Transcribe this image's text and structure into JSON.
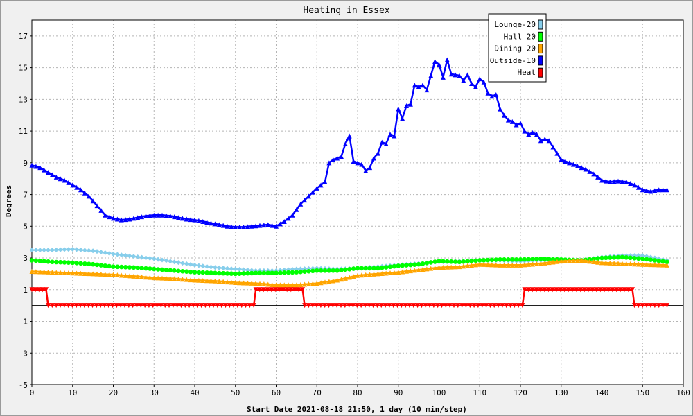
{
  "chart_data": {
    "type": "line",
    "title": "Heating in Essex",
    "xlabel": "Start Date 2021-08-18 21:50, 1 day (10 min/step)",
    "ylabel": "Degrees",
    "xlim": [
      0,
      160
    ],
    "ylim": [
      -5,
      18
    ],
    "x_ticks": [
      0,
      10,
      20,
      30,
      40,
      50,
      60,
      70,
      80,
      90,
      100,
      110,
      120,
      130,
      140,
      150,
      160
    ],
    "y_ticks": [
      -5,
      -3,
      -1,
      1,
      3,
      5,
      7,
      9,
      11,
      13,
      15,
      17
    ],
    "grid": true,
    "legend_position": "top-right",
    "series": [
      {
        "name": "Lounge-20",
        "color": "#87ceeb",
        "marker": "diamond",
        "points": [
          [
            0,
            3.5
          ],
          [
            5,
            3.5
          ],
          [
            10,
            3.55
          ],
          [
            15,
            3.45
          ],
          [
            20,
            3.25
          ],
          [
            25,
            3.1
          ],
          [
            30,
            2.95
          ],
          [
            35,
            2.75
          ],
          [
            40,
            2.55
          ],
          [
            45,
            2.4
          ],
          [
            50,
            2.3
          ],
          [
            55,
            2.2
          ],
          [
            60,
            2.2
          ],
          [
            65,
            2.3
          ],
          [
            70,
            2.35
          ],
          [
            75,
            2.3
          ],
          [
            80,
            2.35
          ],
          [
            85,
            2.45
          ],
          [
            90,
            2.55
          ],
          [
            95,
            2.65
          ],
          [
            100,
            2.75
          ],
          [
            105,
            2.8
          ],
          [
            110,
            2.85
          ],
          [
            115,
            2.85
          ],
          [
            120,
            2.8
          ],
          [
            125,
            2.85
          ],
          [
            130,
            2.85
          ],
          [
            135,
            2.85
          ],
          [
            140,
            3.05
          ],
          [
            145,
            3.15
          ],
          [
            150,
            3.15
          ],
          [
            156,
            2.85
          ]
        ]
      },
      {
        "name": "Hall-20",
        "color": "#00ff00",
        "marker": "circle",
        "points": [
          [
            0,
            2.85
          ],
          [
            5,
            2.75
          ],
          [
            10,
            2.7
          ],
          [
            15,
            2.6
          ],
          [
            20,
            2.45
          ],
          [
            25,
            2.4
          ],
          [
            30,
            2.3
          ],
          [
            35,
            2.2
          ],
          [
            40,
            2.1
          ],
          [
            45,
            2.05
          ],
          [
            50,
            2.0
          ],
          [
            55,
            2.05
          ],
          [
            60,
            2.05
          ],
          [
            65,
            2.1
          ],
          [
            70,
            2.2
          ],
          [
            75,
            2.2
          ],
          [
            80,
            2.35
          ],
          [
            85,
            2.35
          ],
          [
            90,
            2.5
          ],
          [
            95,
            2.6
          ],
          [
            100,
            2.8
          ],
          [
            105,
            2.75
          ],
          [
            110,
            2.85
          ],
          [
            115,
            2.9
          ],
          [
            120,
            2.9
          ],
          [
            125,
            2.95
          ],
          [
            130,
            2.9
          ],
          [
            135,
            2.85
          ],
          [
            140,
            3.0
          ],
          [
            145,
            3.05
          ],
          [
            150,
            2.95
          ],
          [
            156,
            2.75
          ]
        ]
      },
      {
        "name": "Dining-20",
        "color": "#ffa500",
        "marker": "triangle-up",
        "points": [
          [
            0,
            2.15
          ],
          [
            5,
            2.1
          ],
          [
            10,
            2.05
          ],
          [
            15,
            2.0
          ],
          [
            20,
            1.95
          ],
          [
            25,
            1.85
          ],
          [
            30,
            1.75
          ],
          [
            35,
            1.7
          ],
          [
            40,
            1.6
          ],
          [
            45,
            1.55
          ],
          [
            50,
            1.45
          ],
          [
            55,
            1.4
          ],
          [
            60,
            1.3
          ],
          [
            65,
            1.3
          ],
          [
            70,
            1.4
          ],
          [
            75,
            1.6
          ],
          [
            80,
            1.9
          ],
          [
            85,
            2.0
          ],
          [
            90,
            2.1
          ],
          [
            95,
            2.25
          ],
          [
            100,
            2.4
          ],
          [
            105,
            2.45
          ],
          [
            110,
            2.6
          ],
          [
            115,
            2.55
          ],
          [
            120,
            2.55
          ],
          [
            125,
            2.65
          ],
          [
            130,
            2.8
          ],
          [
            135,
            2.85
          ],
          [
            140,
            2.7
          ],
          [
            145,
            2.65
          ],
          [
            150,
            2.6
          ],
          [
            156,
            2.55
          ]
        ]
      },
      {
        "name": "Outside-10",
        "color": "#0000ff",
        "marker": "triangle-up",
        "points": [
          [
            0,
            8.85
          ],
          [
            2,
            8.7
          ],
          [
            4,
            8.4
          ],
          [
            6,
            8.1
          ],
          [
            8,
            7.9
          ],
          [
            10,
            7.6
          ],
          [
            12,
            7.3
          ],
          [
            14,
            6.9
          ],
          [
            16,
            6.3
          ],
          [
            18,
            5.7
          ],
          [
            20,
            5.5
          ],
          [
            22,
            5.4
          ],
          [
            24,
            5.45
          ],
          [
            26,
            5.55
          ],
          [
            28,
            5.65
          ],
          [
            30,
            5.7
          ],
          [
            32,
            5.7
          ],
          [
            34,
            5.65
          ],
          [
            36,
            5.55
          ],
          [
            38,
            5.45
          ],
          [
            40,
            5.4
          ],
          [
            42,
            5.3
          ],
          [
            44,
            5.2
          ],
          [
            46,
            5.1
          ],
          [
            48,
            5.0
          ],
          [
            50,
            4.95
          ],
          [
            52,
            4.95
          ],
          [
            54,
            5.0
          ],
          [
            56,
            5.05
          ],
          [
            58,
            5.1
          ],
          [
            60,
            5.0
          ],
          [
            62,
            5.3
          ],
          [
            64,
            5.7
          ],
          [
            66,
            6.4
          ],
          [
            68,
            6.9
          ],
          [
            70,
            7.4
          ],
          [
            72,
            7.8
          ],
          [
            73,
            9.0
          ],
          [
            74,
            9.2
          ],
          [
            75,
            9.3
          ],
          [
            76,
            9.4
          ],
          [
            77,
            10.2
          ],
          [
            78,
            10.7
          ],
          [
            79,
            9.1
          ],
          [
            80,
            9.0
          ],
          [
            81,
            8.9
          ],
          [
            82,
            8.5
          ],
          [
            83,
            8.7
          ],
          [
            84,
            9.3
          ],
          [
            85,
            9.6
          ],
          [
            86,
            10.3
          ],
          [
            87,
            10.2
          ],
          [
            88,
            10.8
          ],
          [
            89,
            10.7
          ],
          [
            90,
            12.4
          ],
          [
            91,
            11.8
          ],
          [
            92,
            12.6
          ],
          [
            93,
            12.7
          ],
          [
            94,
            13.9
          ],
          [
            95,
            13.8
          ],
          [
            96,
            13.9
          ],
          [
            97,
            13.6
          ],
          [
            98,
            14.5
          ],
          [
            99,
            15.4
          ],
          [
            100,
            15.2
          ],
          [
            101,
            14.4
          ],
          [
            102,
            15.5
          ],
          [
            103,
            14.6
          ],
          [
            104,
            14.55
          ],
          [
            105,
            14.5
          ],
          [
            106,
            14.2
          ],
          [
            107,
            14.55
          ],
          [
            108,
            14.0
          ],
          [
            109,
            13.8
          ],
          [
            110,
            14.3
          ],
          [
            111,
            14.1
          ],
          [
            112,
            13.4
          ],
          [
            113,
            13.2
          ],
          [
            114,
            13.3
          ],
          [
            115,
            12.4
          ],
          [
            116,
            12.0
          ],
          [
            117,
            11.7
          ],
          [
            118,
            11.6
          ],
          [
            119,
            11.4
          ],
          [
            120,
            11.5
          ],
          [
            121,
            11.0
          ],
          [
            122,
            10.8
          ],
          [
            123,
            10.9
          ],
          [
            124,
            10.8
          ],
          [
            125,
            10.4
          ],
          [
            126,
            10.5
          ],
          [
            127,
            10.4
          ],
          [
            128,
            10.0
          ],
          [
            129,
            9.6
          ],
          [
            130,
            9.2
          ],
          [
            132,
            9.0
          ],
          [
            134,
            8.8
          ],
          [
            136,
            8.6
          ],
          [
            138,
            8.3
          ],
          [
            140,
            7.9
          ],
          [
            142,
            7.8
          ],
          [
            144,
            7.85
          ],
          [
            146,
            7.8
          ],
          [
            148,
            7.6
          ],
          [
            150,
            7.3
          ],
          [
            152,
            7.2
          ],
          [
            154,
            7.3
          ],
          [
            156,
            7.3
          ]
        ]
      },
      {
        "name": "Heat",
        "color": "#ff0000",
        "marker": "triangle-down",
        "points": [
          [
            0,
            1
          ],
          [
            3.5,
            1
          ],
          [
            4,
            0
          ],
          [
            54.5,
            0
          ],
          [
            55,
            1
          ],
          [
            66.5,
            1
          ],
          [
            67,
            0
          ],
          [
            120.5,
            0
          ],
          [
            121,
            1
          ],
          [
            147.5,
            1
          ],
          [
            148,
            0
          ],
          [
            156,
            0
          ]
        ]
      }
    ]
  }
}
